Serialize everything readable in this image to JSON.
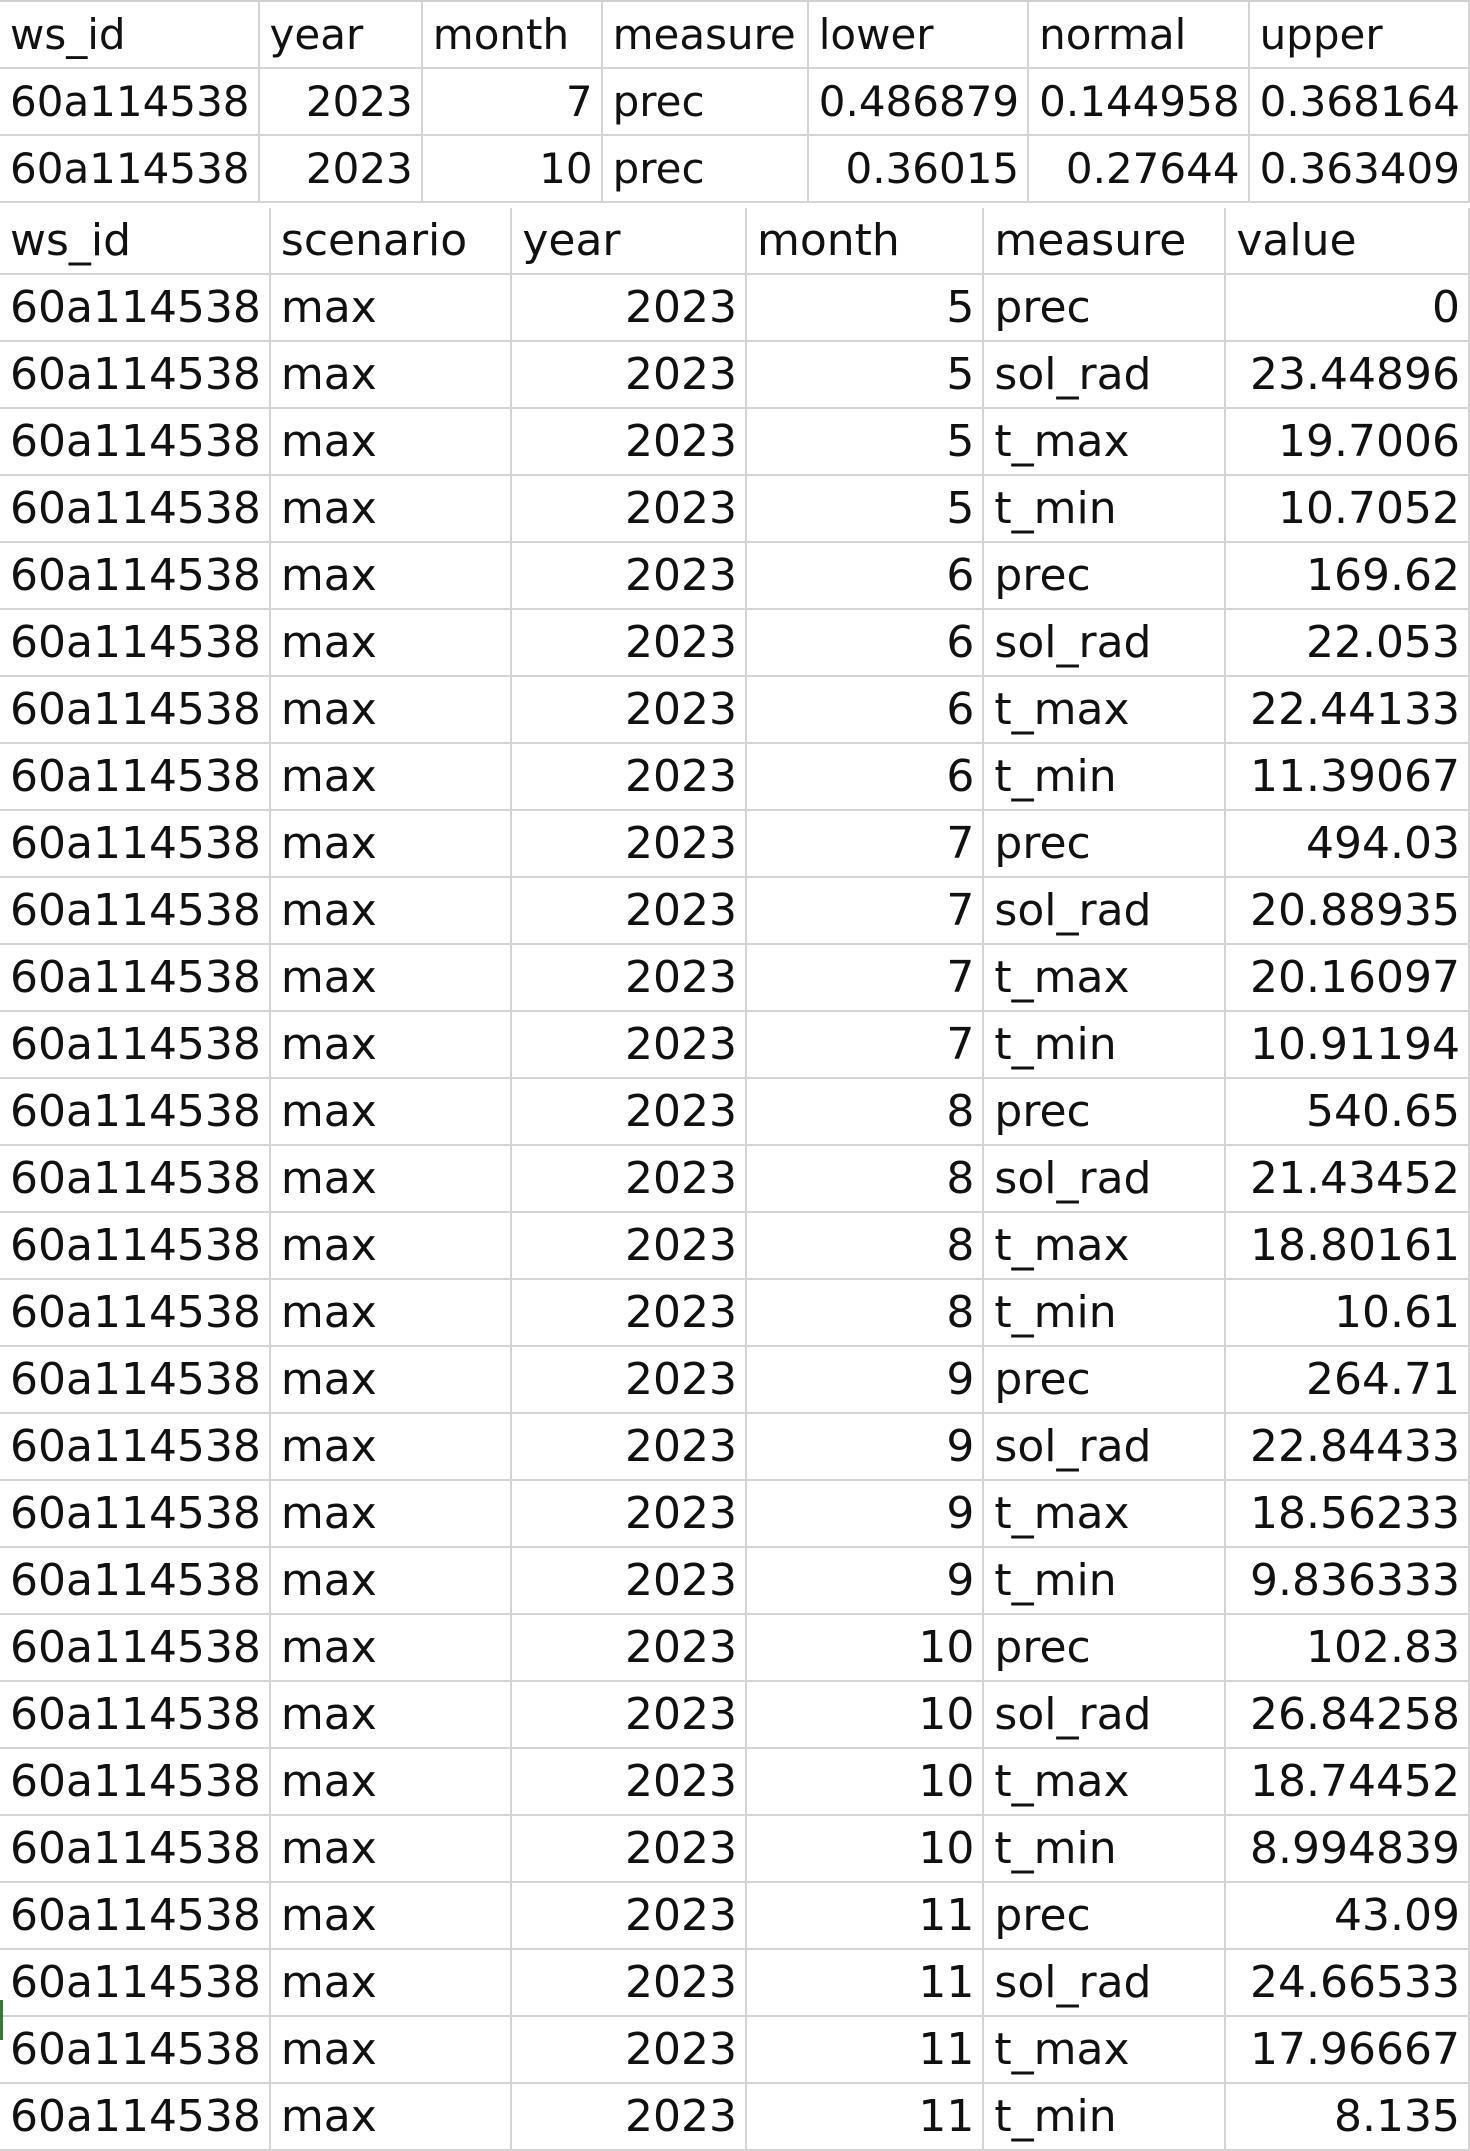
{
  "top_table": {
    "headers": [
      "ws_id",
      "year",
      "month",
      "measure",
      "lower",
      "normal",
      "upper"
    ],
    "rows": [
      [
        "60a114538",
        "2023",
        "7",
        "prec",
        "0.486879",
        "0.144958",
        "0.368164"
      ],
      [
        "60a114538",
        "2023",
        "10",
        "prec",
        "0.36015",
        "0.27644",
        "0.363409"
      ]
    ]
  },
  "bottom_table": {
    "headers": [
      "ws_id",
      "scenario",
      "year",
      "month",
      "measure",
      "value"
    ],
    "rows": [
      [
        "60a114538",
        "max",
        "2023",
        "5",
        "prec",
        "0"
      ],
      [
        "60a114538",
        "max",
        "2023",
        "5",
        "sol_rad",
        "23.44896"
      ],
      [
        "60a114538",
        "max",
        "2023",
        "5",
        "t_max",
        "19.7006"
      ],
      [
        "60a114538",
        "max",
        "2023",
        "5",
        "t_min",
        "10.7052"
      ],
      [
        "60a114538",
        "max",
        "2023",
        "6",
        "prec",
        "169.62"
      ],
      [
        "60a114538",
        "max",
        "2023",
        "6",
        "sol_rad",
        "22.053"
      ],
      [
        "60a114538",
        "max",
        "2023",
        "6",
        "t_max",
        "22.44133"
      ],
      [
        "60a114538",
        "max",
        "2023",
        "6",
        "t_min",
        "11.39067"
      ],
      [
        "60a114538",
        "max",
        "2023",
        "7",
        "prec",
        "494.03"
      ],
      [
        "60a114538",
        "max",
        "2023",
        "7",
        "sol_rad",
        "20.88935"
      ],
      [
        "60a114538",
        "max",
        "2023",
        "7",
        "t_max",
        "20.16097"
      ],
      [
        "60a114538",
        "max",
        "2023",
        "7",
        "t_min",
        "10.91194"
      ],
      [
        "60a114538",
        "max",
        "2023",
        "8",
        "prec",
        "540.65"
      ],
      [
        "60a114538",
        "max",
        "2023",
        "8",
        "sol_rad",
        "21.43452"
      ],
      [
        "60a114538",
        "max",
        "2023",
        "8",
        "t_max",
        "18.80161"
      ],
      [
        "60a114538",
        "max",
        "2023",
        "8",
        "t_min",
        "10.61"
      ],
      [
        "60a114538",
        "max",
        "2023",
        "9",
        "prec",
        "264.71"
      ],
      [
        "60a114538",
        "max",
        "2023",
        "9",
        "sol_rad",
        "22.84433"
      ],
      [
        "60a114538",
        "max",
        "2023",
        "9",
        "t_max",
        "18.56233"
      ],
      [
        "60a114538",
        "max",
        "2023",
        "9",
        "t_min",
        "9.836333"
      ],
      [
        "60a114538",
        "max",
        "2023",
        "10",
        "prec",
        "102.83"
      ],
      [
        "60a114538",
        "max",
        "2023",
        "10",
        "sol_rad",
        "26.84258"
      ],
      [
        "60a114538",
        "max",
        "2023",
        "10",
        "t_max",
        "18.74452"
      ],
      [
        "60a114538",
        "max",
        "2023",
        "10",
        "t_min",
        "8.994839"
      ],
      [
        "60a114538",
        "max",
        "2023",
        "11",
        "prec",
        "43.09"
      ],
      [
        "60a114538",
        "max",
        "2023",
        "11",
        "sol_rad",
        "24.66533"
      ],
      [
        "60a114538",
        "max",
        "2023",
        "11",
        "t_max",
        "17.96667"
      ],
      [
        "60a114538",
        "max",
        "2023",
        "11",
        "t_min",
        "8.135"
      ]
    ]
  },
  "colors": {
    "gridline": "#d4d4d4",
    "text": "#111111",
    "selection_accent": "#2e7d32"
  }
}
